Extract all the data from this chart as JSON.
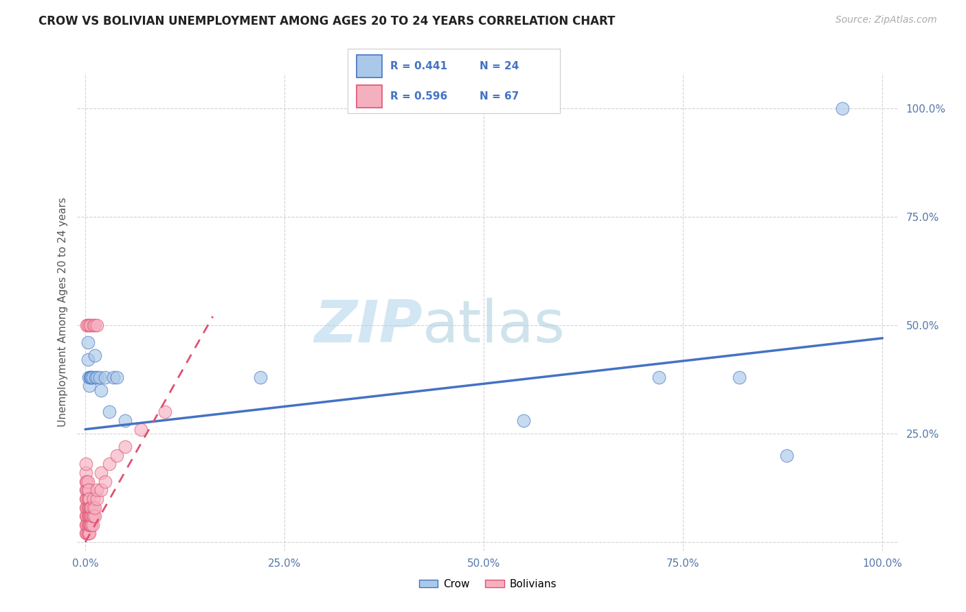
{
  "title": "CROW VS BOLIVIAN UNEMPLOYMENT AMONG AGES 20 TO 24 YEARS CORRELATION CHART",
  "source": "Source: ZipAtlas.com",
  "ylabel": "Unemployment Among Ages 20 to 24 years",
  "xlim": [
    -0.01,
    1.02
  ],
  "ylim": [
    -0.02,
    1.08
  ],
  "xtick_vals": [
    0.0,
    0.25,
    0.5,
    0.75,
    1.0
  ],
  "xticklabels": [
    "0.0%",
    "25.0%",
    "50.0%",
    "75.0%",
    "100.0%"
  ],
  "ytick_vals": [
    0.0,
    0.25,
    0.5,
    0.75,
    1.0
  ],
  "yticklabels_right": [
    "",
    "25.0%",
    "50.0%",
    "75.0%",
    "100.0%"
  ],
  "crow_fill": "#aac8e8",
  "crow_edge": "#4472c4",
  "bolivian_fill": "#f5b0c0",
  "bolivian_edge": "#e05070",
  "crow_line_color": "#4472c4",
  "bolivian_line_color": "#e05070",
  "crow_R": "0.441",
  "crow_N": "24",
  "bolivian_R": "0.596",
  "bolivian_N": "67",
  "watermark_zip_color": "#c8e4f0",
  "watermark_atlas_color": "#b0d4e8",
  "crow_x": [
    0.003,
    0.003,
    0.004,
    0.005,
    0.006,
    0.007,
    0.008,
    0.009,
    0.012,
    0.013,
    0.015,
    0.018,
    0.02,
    0.025,
    0.03,
    0.035,
    0.04,
    0.05,
    0.22,
    0.55,
    0.72,
    0.82,
    0.88,
    0.95
  ],
  "crow_y": [
    0.46,
    0.42,
    0.38,
    0.36,
    0.38,
    0.38,
    0.38,
    0.38,
    0.43,
    0.38,
    0.38,
    0.38,
    0.35,
    0.38,
    0.3,
    0.38,
    0.38,
    0.28,
    0.38,
    0.28,
    0.38,
    0.38,
    0.2,
    1.0
  ],
  "bolivian_x": [
    0.001,
    0.001,
    0.001,
    0.001,
    0.001,
    0.001,
    0.001,
    0.001,
    0.001,
    0.002,
    0.002,
    0.002,
    0.002,
    0.002,
    0.002,
    0.002,
    0.003,
    0.003,
    0.003,
    0.003,
    0.003,
    0.003,
    0.003,
    0.004,
    0.004,
    0.004,
    0.004,
    0.004,
    0.004,
    0.005,
    0.005,
    0.005,
    0.005,
    0.005,
    0.006,
    0.006,
    0.006,
    0.007,
    0.007,
    0.007,
    0.008,
    0.008,
    0.008,
    0.009,
    0.009,
    0.01,
    0.01,
    0.01,
    0.012,
    0.012,
    0.015,
    0.015,
    0.02,
    0.02,
    0.025,
    0.03,
    0.04,
    0.05,
    0.07,
    0.1,
    0.002,
    0.003,
    0.005,
    0.007,
    0.01,
    0.012,
    0.015
  ],
  "bolivian_y": [
    0.02,
    0.04,
    0.06,
    0.08,
    0.1,
    0.12,
    0.14,
    0.16,
    0.18,
    0.02,
    0.04,
    0.06,
    0.08,
    0.1,
    0.12,
    0.14,
    0.02,
    0.04,
    0.06,
    0.08,
    0.1,
    0.12,
    0.14,
    0.02,
    0.04,
    0.06,
    0.08,
    0.1,
    0.12,
    0.02,
    0.04,
    0.06,
    0.08,
    0.1,
    0.04,
    0.06,
    0.08,
    0.04,
    0.06,
    0.08,
    0.04,
    0.06,
    0.08,
    0.04,
    0.06,
    0.06,
    0.08,
    0.1,
    0.06,
    0.08,
    0.1,
    0.12,
    0.12,
    0.16,
    0.14,
    0.18,
    0.2,
    0.22,
    0.26,
    0.3,
    0.5,
    0.5,
    0.5,
    0.5,
    0.5,
    0.5,
    0.5
  ],
  "crow_trend_x": [
    0.0,
    1.0
  ],
  "crow_trend_y": [
    0.26,
    0.47
  ],
  "bolivian_trend_x": [
    0.0,
    0.16
  ],
  "bolivian_trend_y": [
    0.0,
    0.52
  ]
}
